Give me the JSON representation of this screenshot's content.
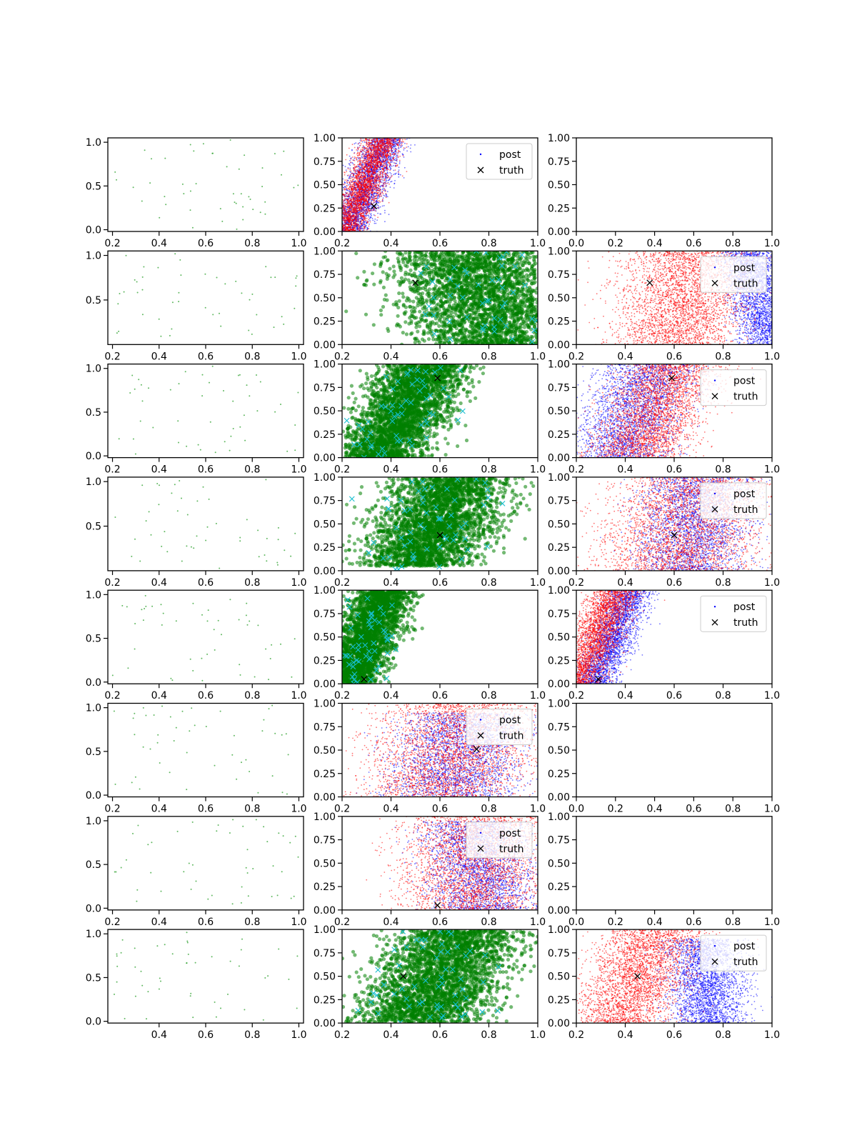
{
  "figure": {
    "rows": 8,
    "cols": 3,
    "legend_labels": [
      "post",
      "truth"
    ]
  },
  "colors": {
    "scatter_green": "#008000",
    "faint_green": "#2ca02c",
    "post_blue": "#0000ff",
    "post_red": "#ff0000",
    "truth_cyan": "#17becf",
    "truth_marker": "#000000"
  },
  "chart_data": [
    {
      "row": 0,
      "col": 0,
      "type": "scatter",
      "style": "faint_green",
      "x_ticks": [
        0.2,
        0.4,
        0.6,
        0.8,
        1.0
      ],
      "y_ticks": [
        0.0,
        0.5,
        1.0
      ],
      "xlim": [
        0.18,
        1.02
      ],
      "ylim": [
        -0.02,
        1.05
      ]
    },
    {
      "row": 0,
      "col": 1,
      "type": "scatter",
      "style": "posterior",
      "x_ticks": [
        0.2,
        0.4,
        0.6,
        0.8,
        1.0
      ],
      "y_ticks": [
        0.0,
        0.25,
        0.5,
        0.75,
        1.0
      ],
      "xlim": [
        0.2,
        1.0
      ],
      "ylim": [
        0.0,
        1.0
      ],
      "posterior": {
        "blue": {
          "base": 0.3,
          "slope": 0.16,
          "spread": 0.045,
          "ymin": 0.0,
          "ymax": 1.0
        },
        "red": {
          "base": 0.29,
          "slope": 0.16,
          "spread": 0.04,
          "ymin": 0.0,
          "ymax": 1.0
        }
      },
      "truth": {
        "x": 0.33,
        "y": 0.27
      },
      "legend": "top-right"
    },
    {
      "row": 0,
      "col": 2,
      "type": "empty",
      "x_ticks": [
        0.0,
        0.2,
        0.4,
        0.6,
        0.8,
        1.0
      ],
      "y_ticks": [
        0.0,
        0.25,
        0.5,
        0.75,
        1.0
      ],
      "xlim": [
        0.0,
        1.0
      ],
      "ylim": [
        0.0,
        1.0
      ]
    },
    {
      "row": 1,
      "col": 0,
      "type": "scatter",
      "style": "faint_green",
      "x_ticks": [
        0.2,
        0.4,
        0.6,
        0.8,
        1.0
      ],
      "y_ticks": [
        0.5,
        1.0
      ],
      "xlim": [
        0.18,
        1.02
      ],
      "ylim": [
        0.0,
        1.05
      ]
    },
    {
      "row": 1,
      "col": 1,
      "type": "scatter",
      "style": "green",
      "x_ticks": [
        0.2,
        0.4,
        0.6,
        0.8,
        1.0
      ],
      "y_ticks": [
        0.0,
        0.25,
        0.5,
        0.75,
        1.0
      ],
      "xlim": [
        0.2,
        1.0
      ],
      "ylim": [
        0.0,
        1.0
      ],
      "green": {
        "base": 0.78,
        "slope": -0.1,
        "spread": 0.17,
        "ymin": 0.0,
        "ymax": 1.0
      },
      "truth": {
        "x": 0.5,
        "y": 0.66
      }
    },
    {
      "row": 1,
      "col": 2,
      "type": "scatter",
      "style": "posterior",
      "x_ticks": [
        0.2,
        0.4,
        0.6,
        0.8,
        1.0
      ],
      "y_ticks": [
        0.0,
        0.25,
        0.5,
        0.75,
        1.0
      ],
      "xlim": [
        0.2,
        1.0
      ],
      "ylim": [
        0.0,
        1.0
      ],
      "posterior": {
        "blue": {
          "base": 0.95,
          "slope": -0.1,
          "spread": 0.06,
          "ymin": 0.0,
          "ymax": 1.0
        },
        "red": {
          "base": 0.63,
          "slope": 0.05,
          "spread": 0.13,
          "ymin": 0.0,
          "ymax": 1.0
        }
      },
      "truth": {
        "x": 0.5,
        "y": 0.66
      },
      "legend": "top-right"
    },
    {
      "row": 2,
      "col": 0,
      "type": "scatter",
      "style": "faint_green",
      "x_ticks": [
        0.2,
        0.4,
        0.6,
        0.8,
        1.0
      ],
      "y_ticks": [
        0.0,
        0.5,
        1.0
      ],
      "xlim": [
        0.18,
        1.02
      ],
      "ylim": [
        -0.02,
        1.05
      ]
    },
    {
      "row": 2,
      "col": 1,
      "type": "scatter",
      "style": "green",
      "x_ticks": [
        0.2,
        0.4,
        0.6,
        0.8,
        1.0
      ],
      "y_ticks": [
        0.0,
        0.25,
        0.5,
        0.75,
        1.0
      ],
      "xlim": [
        0.2,
        1.0
      ],
      "ylim": [
        0.0,
        1.0
      ],
      "green": {
        "base": 0.45,
        "slope": 0.2,
        "spread": 0.09,
        "ymin": 0.0,
        "ymax": 1.0
      },
      "truth": {
        "x": 0.59,
        "y": 0.85
      }
    },
    {
      "row": 2,
      "col": 2,
      "type": "scatter",
      "style": "posterior",
      "x_ticks": [
        0.2,
        0.4,
        0.6,
        0.8,
        1.0
      ],
      "y_ticks": [
        0.0,
        0.25,
        0.5,
        0.75,
        1.0
      ],
      "xlim": [
        0.2,
        1.0
      ],
      "ylim": [
        0.0,
        1.0
      ],
      "posterior": {
        "blue": {
          "base": 0.44,
          "slope": 0.14,
          "spread": 0.1,
          "ymin": 0.0,
          "ymax": 1.0
        },
        "red": {
          "base": 0.52,
          "slope": 0.15,
          "spread": 0.1,
          "ymin": 0.0,
          "ymax": 1.0
        }
      },
      "truth": {
        "x": 0.59,
        "y": 0.85
      },
      "legend": "top-right"
    },
    {
      "row": 3,
      "col": 0,
      "type": "scatter",
      "style": "faint_green",
      "x_ticks": [
        0.2,
        0.4,
        0.6,
        0.8,
        1.0
      ],
      "y_ticks": [
        0.5,
        1.0
      ],
      "xlim": [
        0.18,
        1.02
      ],
      "ylim": [
        0.0,
        1.05
      ]
    },
    {
      "row": 3,
      "col": 1,
      "type": "scatter",
      "style": "green",
      "x_ticks": [
        0.2,
        0.4,
        0.6,
        0.8,
        1.0
      ],
      "y_ticks": [
        0.0,
        0.25,
        0.5,
        0.75,
        1.0
      ],
      "xlim": [
        0.2,
        1.0
      ],
      "ylim": [
        0.0,
        1.0
      ],
      "green": {
        "base": 0.58,
        "slope": 0.18,
        "spread": 0.12,
        "ymin": 0.05,
        "ymax": 1.0
      },
      "truth": {
        "x": 0.6,
        "y": 0.38
      }
    },
    {
      "row": 3,
      "col": 2,
      "type": "scatter",
      "style": "posterior",
      "x_ticks": [
        0.2,
        0.4,
        0.6,
        0.8,
        1.0
      ],
      "y_ticks": [
        0.0,
        0.25,
        0.5,
        0.75,
        1.0
      ],
      "xlim": [
        0.2,
        1.0
      ],
      "ylim": [
        0.0,
        1.0
      ],
      "posterior": {
        "blue": {
          "base": 0.68,
          "slope": 0.05,
          "spread": 0.11,
          "ymin": 0.0,
          "ymax": 1.0
        },
        "red": {
          "base": 0.65,
          "slope": 0.12,
          "spread": 0.16,
          "ymin": 0.0,
          "ymax": 1.0
        }
      },
      "truth": {
        "x": 0.6,
        "y": 0.38
      },
      "legend": "top-right"
    },
    {
      "row": 4,
      "col": 0,
      "type": "scatter",
      "style": "faint_green",
      "x_ticks": [
        0.2,
        0.4,
        0.6,
        0.8,
        1.0
      ],
      "y_ticks": [
        0.0,
        0.5,
        1.0
      ],
      "xlim": [
        0.18,
        1.02
      ],
      "ylim": [
        -0.02,
        1.05
      ]
    },
    {
      "row": 4,
      "col": 1,
      "type": "scatter",
      "style": "green",
      "x_ticks": [
        0.2,
        0.4,
        0.6,
        0.8,
        1.0
      ],
      "y_ticks": [
        0.0,
        0.25,
        0.5,
        0.75,
        1.0
      ],
      "xlim": [
        0.2,
        1.0
      ],
      "ylim": [
        0.0,
        1.0
      ],
      "green": {
        "base": 0.3,
        "slope": 0.15,
        "spread": 0.06,
        "ymin": 0.0,
        "ymax": 1.0
      },
      "truth": {
        "x": 0.29,
        "y": 0.05
      }
    },
    {
      "row": 4,
      "col": 2,
      "type": "scatter",
      "style": "posterior",
      "x_ticks": [
        0.2,
        0.4,
        0.6,
        0.8,
        1.0
      ],
      "y_ticks": [
        0.0,
        0.25,
        0.5,
        0.75,
        1.0
      ],
      "xlim": [
        0.2,
        1.0
      ],
      "ylim": [
        0.0,
        1.0
      ],
      "posterior": {
        "blue": {
          "base": 0.35,
          "slope": 0.15,
          "spread": 0.045,
          "ymin": 0.0,
          "ymax": 1.0
        },
        "red": {
          "base": 0.28,
          "slope": 0.17,
          "spread": 0.05,
          "ymin": 0.0,
          "ymax": 1.0
        }
      },
      "truth": {
        "x": 0.29,
        "y": 0.05
      },
      "legend": "top-right"
    },
    {
      "row": 5,
      "col": 0,
      "type": "scatter",
      "style": "faint_green",
      "x_ticks": [
        0.2,
        0.4,
        0.6,
        0.8,
        1.0
      ],
      "y_ticks": [
        0.0,
        0.5,
        1.0
      ],
      "xlim": [
        0.18,
        1.02
      ],
      "ylim": [
        -0.02,
        1.05
      ]
    },
    {
      "row": 5,
      "col": 1,
      "type": "scatter",
      "style": "posterior",
      "x_ticks": [
        0.2,
        0.4,
        0.6,
        0.8,
        1.0
      ],
      "y_ticks": [
        0.0,
        0.25,
        0.5,
        0.75,
        1.0
      ],
      "xlim": [
        0.2,
        1.0
      ],
      "ylim": [
        0.0,
        1.0
      ],
      "posterior": {
        "blue": {
          "base": 0.68,
          "slope": 0.06,
          "spread": 0.13,
          "ymin": 0.0,
          "ymax": 0.9
        },
        "red": {
          "base": 0.65,
          "slope": 0.1,
          "spread": 0.17,
          "ymin": 0.0,
          "ymax": 1.0
        }
      },
      "truth": {
        "x": 0.75,
        "y": 0.51
      },
      "legend": "top-right"
    },
    {
      "row": 5,
      "col": 2,
      "type": "empty",
      "x_ticks": [
        0.0,
        0.2,
        0.4,
        0.6,
        0.8,
        1.0
      ],
      "y_ticks": [
        0.0,
        0.25,
        0.5,
        0.75,
        1.0
      ],
      "xlim": [
        0.0,
        1.0
      ],
      "ylim": [
        0.0,
        1.0
      ]
    },
    {
      "row": 6,
      "col": 0,
      "type": "scatter",
      "style": "faint_green",
      "x_ticks": [
        0.2,
        0.4,
        0.6,
        0.8,
        1.0
      ],
      "y_ticks": [
        0.0,
        0.5,
        1.0
      ],
      "xlim": [
        0.18,
        1.02
      ],
      "ylim": [
        -0.02,
        1.05
      ]
    },
    {
      "row": 6,
      "col": 1,
      "type": "scatter",
      "style": "posterior",
      "x_ticks": [
        0.2,
        0.4,
        0.6,
        0.8,
        1.0
      ],
      "y_ticks": [
        0.0,
        0.25,
        0.5,
        0.75,
        1.0
      ],
      "xlim": [
        0.2,
        1.0
      ],
      "ylim": [
        0.0,
        1.0
      ],
      "posterior": {
        "blue": {
          "base": 0.76,
          "slope": -0.06,
          "spread": 0.11,
          "ymin": 0.0,
          "ymax": 0.95
        },
        "red": {
          "base": 0.75,
          "slope": 0.05,
          "spread": 0.15,
          "ymin": 0.0,
          "ymax": 1.0
        }
      },
      "truth": {
        "x": 0.59,
        "y": 0.05
      },
      "legend": "top-right"
    },
    {
      "row": 6,
      "col": 2,
      "type": "empty",
      "x_ticks": [
        0.0,
        0.2,
        0.4,
        0.6,
        0.8,
        1.0
      ],
      "y_ticks": [
        0.0,
        0.25,
        0.5,
        0.75,
        1.0
      ],
      "xlim": [
        0.0,
        1.0
      ],
      "ylim": [
        0.0,
        1.0
      ]
    },
    {
      "row": 7,
      "col": 0,
      "type": "scatter",
      "style": "faint_green",
      "x_ticks": [
        0.4,
        0.6,
        0.8,
        1.0
      ],
      "y_ticks": [
        0.0,
        0.5,
        1.0
      ],
      "xlim": [
        0.18,
        1.02
      ],
      "ylim": [
        -0.02,
        1.05
      ]
    },
    {
      "row": 7,
      "col": 1,
      "type": "scatter",
      "style": "green",
      "x_ticks": [
        0.2,
        0.4,
        0.6,
        0.8,
        1.0
      ],
      "y_ticks": [
        0.0,
        0.25,
        0.5,
        0.75,
        1.0
      ],
      "xlim": [
        0.2,
        1.0
      ],
      "ylim": [
        0.0,
        1.0
      ],
      "green": {
        "base": 0.6,
        "slope": 0.17,
        "spread": 0.13,
        "ymin": 0.0,
        "ymax": 1.0
      },
      "truth": {
        "x": 0.45,
        "y": 0.5
      }
    },
    {
      "row": 7,
      "col": 2,
      "type": "scatter",
      "style": "posterior",
      "x_ticks": [
        0.2,
        0.4,
        0.6,
        0.8,
        1.0
      ],
      "y_ticks": [
        0.0,
        0.25,
        0.5,
        0.75,
        1.0
      ],
      "xlim": [
        0.2,
        1.0
      ],
      "ylim": [
        0.0,
        1.0
      ],
      "posterior": {
        "blue": {
          "base": 0.73,
          "slope": -0.02,
          "spread": 0.08,
          "ymin": 0.0,
          "ymax": 0.9
        },
        "red": {
          "base": 0.45,
          "slope": 0.16,
          "spread": 0.1,
          "ymin": 0.0,
          "ymax": 1.0
        }
      },
      "truth": {
        "x": 0.45,
        "y": 0.5
      },
      "legend": "top-right"
    }
  ]
}
